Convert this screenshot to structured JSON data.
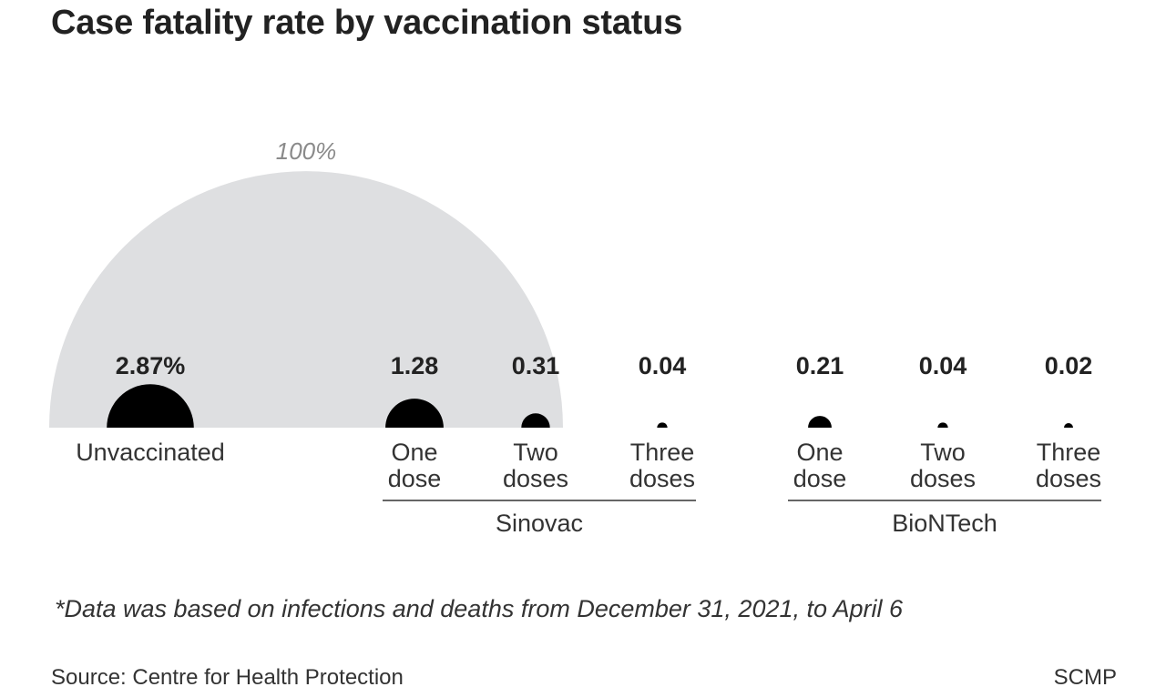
{
  "title": "Case fatality rate by vaccination status",
  "footnote": "*Data was based on infections and deaths from December 31, 2021, to April 6",
  "source": "Source: Centre for Health Protection",
  "credit": "SCMP",
  "colors": {
    "reference": "#dedfe1",
    "dot": "#000000",
    "text": "#222222",
    "reference_label": "#8a8a8a",
    "rule": "#333333"
  },
  "chart_data": {
    "type": "proportional-semicircle",
    "reference": {
      "label": "100%",
      "value": 100
    },
    "unit": "%",
    "points": [
      {
        "value_label": "2.87%",
        "value": 2.87,
        "label": [
          "Unvaccinated"
        ],
        "group": ""
      },
      {
        "value_label": "1.28",
        "value": 1.28,
        "label": [
          "One",
          "dose"
        ],
        "group": "Sinovac"
      },
      {
        "value_label": "0.31",
        "value": 0.31,
        "label": [
          "Two",
          "doses"
        ],
        "group": "Sinovac"
      },
      {
        "value_label": "0.04",
        "value": 0.04,
        "label": [
          "Three",
          "doses"
        ],
        "group": "Sinovac"
      },
      {
        "value_label": "0.21",
        "value": 0.21,
        "label": [
          "One",
          "dose"
        ],
        "group": "BioNTech"
      },
      {
        "value_label": "0.04",
        "value": 0.04,
        "label": [
          "Two",
          "doses"
        ],
        "group": "BioNTech"
      },
      {
        "value_label": "0.02",
        "value": 0.02,
        "label": [
          "Three",
          "doses"
        ],
        "group": "BioNTech"
      }
    ],
    "groups": [
      "Sinovac",
      "BioNTech"
    ]
  }
}
